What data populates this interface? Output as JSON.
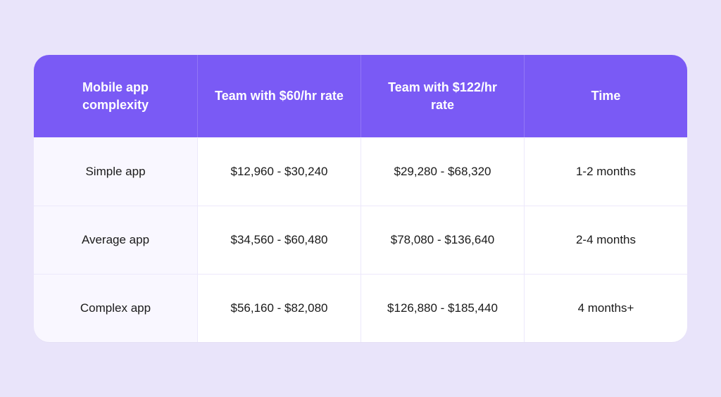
{
  "table": {
    "type": "table",
    "columns": [
      "Mobile app complexity",
      "Team with $60/hr rate",
      "Team with $122/hr rate",
      "Time"
    ],
    "rows": [
      [
        "Simple app",
        "$12,960 - $30,240",
        "$29,280 - $68,320",
        "1-2 months"
      ],
      [
        "Average app",
        "$34,560 - $60,480",
        "$78,080 - $136,640",
        "2-4 months"
      ],
      [
        "Complex app",
        "$56,160 - $82,080",
        "$126,880 - $185,440",
        "4 months+"
      ]
    ],
    "style": {
      "header_background": "#7a5af5",
      "header_text_color": "#ffffff",
      "header_font_size": 18,
      "header_font_weight": 600,
      "body_background": "#ffffff",
      "first_column_background": "#f9f7ff",
      "body_text_color": "#1a1a1a",
      "body_font_size": 17,
      "border_color": "#ece8fb",
      "border_radius": 22,
      "page_background": "#e9e4fa",
      "column_widths": [
        "25%",
        "25%",
        "25%",
        "25%"
      ],
      "row_height_header": 112,
      "row_height_body": 116
    }
  }
}
